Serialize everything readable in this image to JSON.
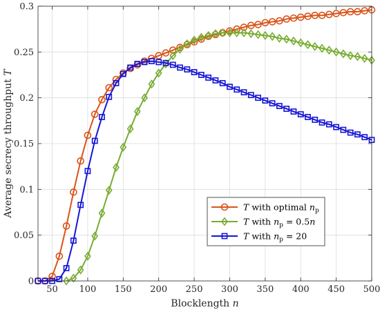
{
  "chart_data": {
    "type": "line",
    "title": "",
    "xlabel": "Blocklength n",
    "ylabel": "Average secrecy throughput T",
    "xlim": [
      30,
      500
    ],
    "ylim": [
      0,
      0.3
    ],
    "grid": true,
    "legend_position": "right-middle",
    "x_ticks": [
      "50",
      "100",
      "150",
      "200",
      "250",
      "300",
      "350",
      "400",
      "450",
      "500"
    ],
    "y_ticks": [
      "0",
      "0.05",
      "0.1",
      "0.15",
      "0.2",
      "0.25",
      "0.3"
    ],
    "series": [
      {
        "name": "T with optimal n_p",
        "color": "#d95319",
        "marker": "circle",
        "x": [
          30,
          40,
          50,
          60,
          70,
          80,
          90,
          100,
          110,
          120,
          130,
          140,
          150,
          160,
          170,
          180,
          190,
          200,
          210,
          220,
          230,
          240,
          250,
          260,
          270,
          280,
          290,
          300,
          310,
          320,
          330,
          340,
          350,
          360,
          370,
          380,
          390,
          400,
          410,
          420,
          430,
          440,
          450,
          460,
          470,
          480,
          490,
          500
        ],
        "y": [
          0.0,
          0.0,
          0.005,
          0.027,
          0.06,
          0.097,
          0.131,
          0.159,
          0.182,
          0.198,
          0.211,
          0.22,
          0.227,
          0.232,
          0.236,
          0.24,
          0.243,
          0.246,
          0.249,
          0.252,
          0.255,
          0.258,
          0.261,
          0.264,
          0.267,
          0.269,
          0.271,
          0.273,
          0.275,
          0.277,
          0.279,
          0.28,
          0.282,
          0.283,
          0.284,
          0.286,
          0.287,
          0.288,
          0.289,
          0.29,
          0.29,
          0.291,
          0.292,
          0.293,
          0.294,
          0.294,
          0.295,
          0.296
        ]
      },
      {
        "name": "T with n_p = 0.5n",
        "color": "#77ac30",
        "marker": "diamond",
        "x": [
          70,
          80,
          90,
          100,
          110,
          120,
          130,
          140,
          150,
          160,
          170,
          180,
          190,
          200,
          210,
          220,
          230,
          240,
          250,
          260,
          270,
          280,
          290,
          300,
          310,
          320,
          330,
          340,
          350,
          360,
          370,
          380,
          390,
          400,
          410,
          420,
          430,
          440,
          450,
          460,
          470,
          480,
          490,
          500
        ],
        "y": [
          0.0,
          0.003,
          0.012,
          0.027,
          0.049,
          0.074,
          0.099,
          0.124,
          0.146,
          0.166,
          0.185,
          0.2,
          0.215,
          0.227,
          0.237,
          0.246,
          0.253,
          0.259,
          0.263,
          0.266,
          0.268,
          0.27,
          0.271,
          0.271,
          0.271,
          0.271,
          0.27,
          0.269,
          0.268,
          0.267,
          0.265,
          0.264,
          0.262,
          0.26,
          0.258,
          0.256,
          0.254,
          0.252,
          0.25,
          0.248,
          0.246,
          0.245,
          0.243,
          0.241
        ]
      },
      {
        "name": "T with n_p = 20",
        "color": "#1414d6",
        "marker": "square",
        "x": [
          30,
          40,
          50,
          60,
          70,
          80,
          90,
          100,
          110,
          120,
          130,
          140,
          150,
          160,
          170,
          180,
          190,
          200,
          210,
          220,
          230,
          240,
          250,
          260,
          270,
          280,
          290,
          300,
          310,
          320,
          330,
          340,
          350,
          360,
          370,
          380,
          390,
          400,
          410,
          420,
          430,
          440,
          450,
          460,
          470,
          480,
          490,
          500
        ],
        "y": [
          0.0,
          0.0,
          0.0,
          0.002,
          0.014,
          0.044,
          0.083,
          0.12,
          0.153,
          0.179,
          0.201,
          0.216,
          0.226,
          0.233,
          0.237,
          0.239,
          0.24,
          0.239,
          0.238,
          0.236,
          0.233,
          0.231,
          0.228,
          0.225,
          0.222,
          0.219,
          0.216,
          0.212,
          0.209,
          0.206,
          0.203,
          0.2,
          0.197,
          0.194,
          0.191,
          0.188,
          0.185,
          0.182,
          0.179,
          0.176,
          0.173,
          0.171,
          0.168,
          0.165,
          0.162,
          0.16,
          0.157,
          0.154
        ]
      }
    ],
    "legend_labels": [
      {
        "T": "T",
        "text": " with optimal ",
        "sym": "n",
        "sub": "p",
        "tail": ""
      },
      {
        "T": "T",
        "text": " with ",
        "sym": "n",
        "sub": "p",
        "tail": " = 0.5",
        "tail_sym": "n"
      },
      {
        "T": "T",
        "text": " with ",
        "sym": "n",
        "sub": "p",
        "tail": " = 20",
        "tail_sym": ""
      }
    ]
  }
}
